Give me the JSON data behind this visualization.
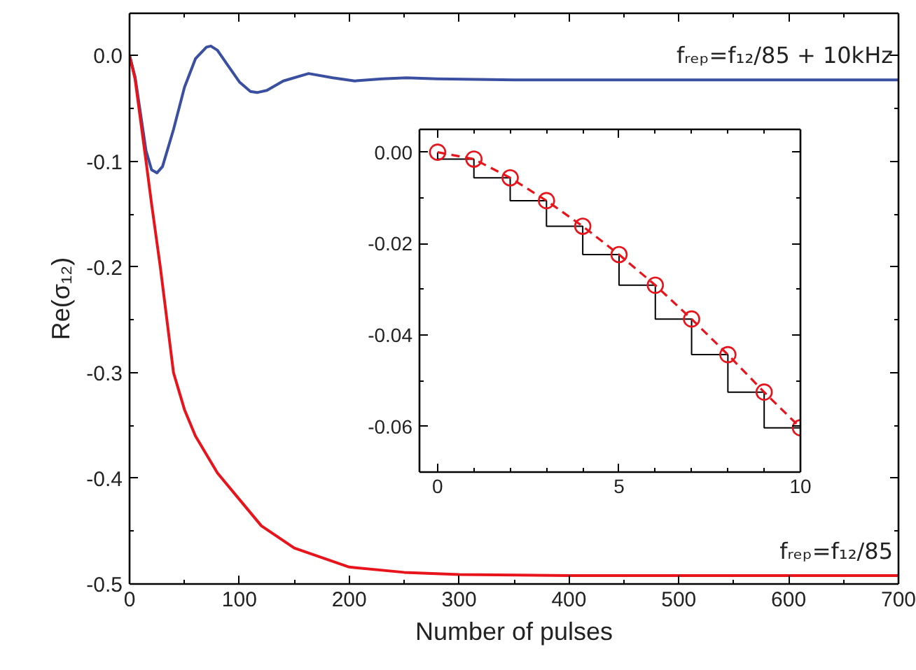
{
  "chart_data": [
    {
      "type": "line",
      "xlabel": "Number of pulses",
      "ylabel": "Re(σ₁₂)",
      "xlim": [
        0,
        700
      ],
      "ylim": [
        -0.5,
        0.04
      ],
      "xticks": [
        0,
        {
          "value": 50,
          "label": null
        },
        100,
        {
          "value": 150,
          "label": null
        },
        200,
        {
          "value": 250,
          "label": null
        },
        300,
        {
          "value": 350,
          "label": null
        },
        400,
        {
          "value": 450,
          "label": null
        },
        500,
        {
          "value": 550,
          "label": null
        },
        600,
        {
          "value": 650,
          "label": null
        },
        700
      ],
      "yticks": [
        {
          "value": -0.5,
          "label": "-0.5"
        },
        {
          "value": -0.45,
          "label": null
        },
        {
          "value": -0.4,
          "label": "-0.4"
        },
        {
          "value": -0.35,
          "label": null
        },
        {
          "value": -0.3,
          "label": "-0.3"
        },
        {
          "value": -0.25,
          "label": null
        },
        {
          "value": -0.2,
          "label": "-0.2"
        },
        {
          "value": -0.15,
          "label": null
        },
        {
          "value": -0.1,
          "label": "-0.1"
        },
        {
          "value": -0.05,
          "label": null
        },
        {
          "value": 0,
          "label": "0.0"
        }
      ],
      "series": [
        {
          "name": "fᵣₑₚ=f₁₂/85 + 10kHz",
          "color": "#3a4fa0",
          "x": [
            0,
            5,
            10,
            15,
            20,
            25,
            30,
            40,
            50,
            60,
            70,
            74,
            80,
            90,
            100,
            110,
            116,
            125,
            140,
            163,
            185,
            205,
            230,
            252,
            280,
            350,
            700
          ],
          "values": [
            0,
            -0.02,
            -0.055,
            -0.09,
            -0.108,
            -0.111,
            -0.105,
            -0.07,
            -0.03,
            -0.003,
            0.008,
            0.009,
            0.005,
            -0.01,
            -0.025,
            -0.034,
            -0.035,
            -0.033,
            -0.024,
            -0.017,
            -0.021,
            -0.024,
            -0.022,
            -0.021,
            -0.022,
            -0.023,
            -0.023
          ]
        },
        {
          "name": "fᵣₑₚ=f₁₂/85",
          "color": "#e8141b",
          "x": [
            0,
            5,
            10,
            15,
            20,
            28,
            40,
            50,
            60,
            80,
            100,
            120,
            150,
            200,
            250,
            300,
            400,
            700
          ],
          "values": [
            0,
            -0.022,
            -0.061,
            -0.1,
            -0.14,
            -0.2,
            -0.3,
            -0.335,
            -0.36,
            -0.395,
            -0.42,
            -0.445,
            -0.466,
            -0.484,
            -0.489,
            -0.491,
            -0.492,
            -0.492
          ]
        }
      ]
    },
    {
      "type": "line",
      "x": [
        0,
        1,
        2,
        3,
        4,
        5,
        6,
        7,
        8,
        9,
        10
      ],
      "xlim": [
        -0.5,
        10
      ],
      "ylim": [
        -0.07,
        0.005
      ],
      "xticks": [
        0,
        {
          "value": 1,
          "label": null
        },
        {
          "value": 2,
          "label": null
        },
        {
          "value": 3,
          "label": null
        },
        {
          "value": 4,
          "label": null
        },
        5,
        {
          "value": 6,
          "label": null
        },
        {
          "value": 7,
          "label": null
        },
        {
          "value": 8,
          "label": null
        },
        {
          "value": 9,
          "label": null
        },
        10
      ],
      "yticks": [
        {
          "value": -0.07,
          "label": null
        },
        {
          "value": -0.06,
          "label": "-0.06"
        },
        {
          "value": -0.05,
          "label": null
        },
        {
          "value": -0.04,
          "label": "-0.04"
        },
        {
          "value": -0.03,
          "label": null
        },
        {
          "value": -0.02,
          "label": "-0.02"
        },
        {
          "value": -0.01,
          "label": null
        },
        {
          "value": 0,
          "label": "0.00"
        }
      ],
      "series": [
        {
          "type": "step",
          "color": "#000000",
          "values": [
            0,
            -0.0015,
            -0.0056,
            -0.0106,
            -0.0162,
            -0.0224,
            -0.0291,
            -0.0365,
            -0.0443,
            -0.0525,
            -0.0603
          ]
        },
        {
          "type": "line",
          "color": "#e8141b",
          "marker": "circle",
          "line_style": "dashed",
          "values": [
            0,
            -0.0015,
            -0.0056,
            -0.0106,
            -0.0162,
            -0.0224,
            -0.0291,
            -0.0365,
            -0.0443,
            -0.0525,
            -0.0603
          ]
        }
      ]
    }
  ]
}
